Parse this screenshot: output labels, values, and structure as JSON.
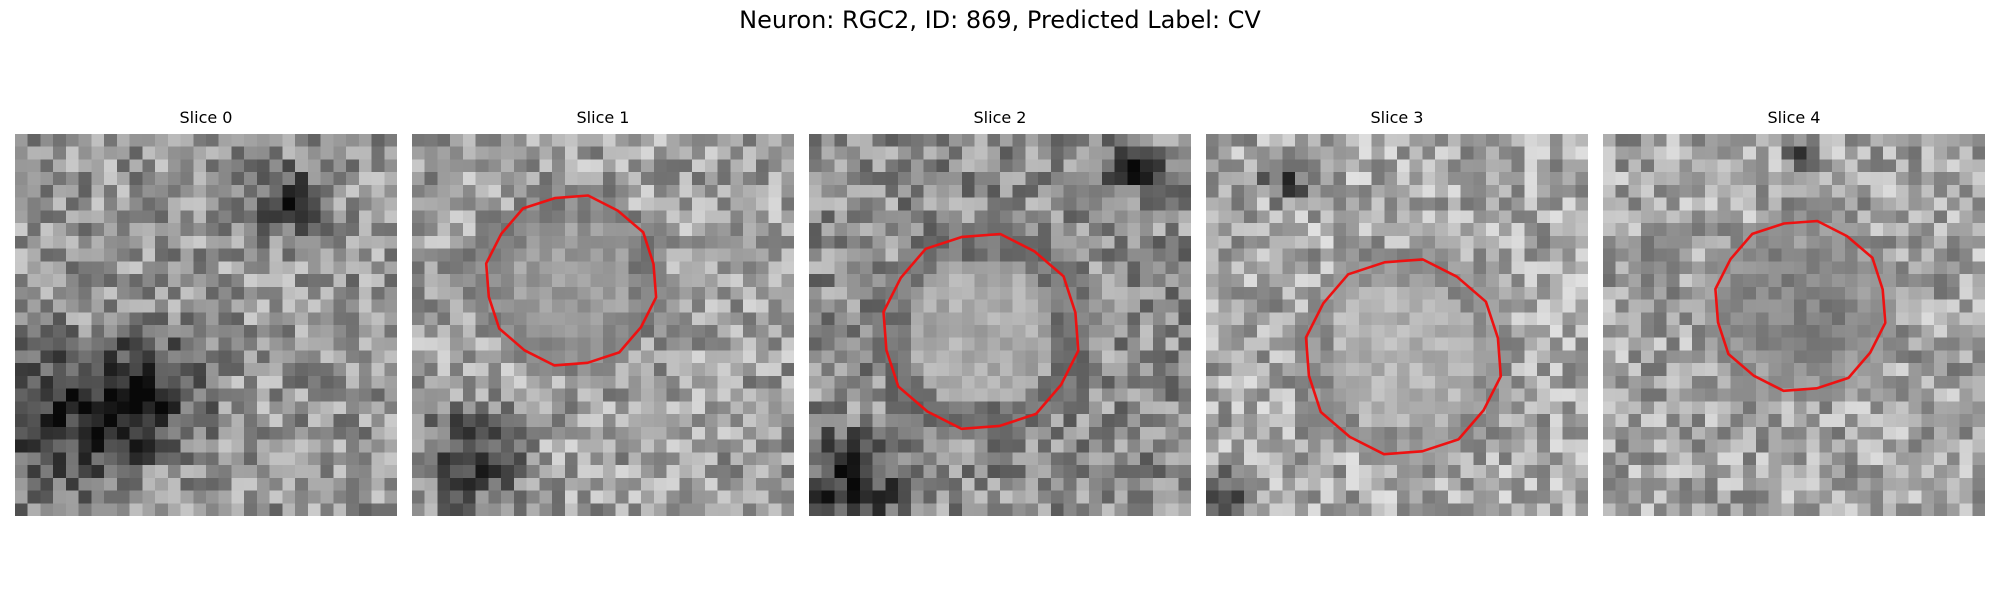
{
  "figure": {
    "title": "Neuron: RGC2, ID: 869, Predicted Label: CV"
  },
  "panels": [
    {
      "title": "Slice 0",
      "has_roi": false
    },
    {
      "title": "Slice 1",
      "has_roi": true
    },
    {
      "title": "Slice 2",
      "has_roi": true
    },
    {
      "title": "Slice 3",
      "has_roi": true
    },
    {
      "title": "Slice 4",
      "has_roi": true
    }
  ],
  "colors": {
    "roi_outline": "#ee1111",
    "background": "#ffffff"
  },
  "image_style": "grayscale noisy pixel grid"
}
